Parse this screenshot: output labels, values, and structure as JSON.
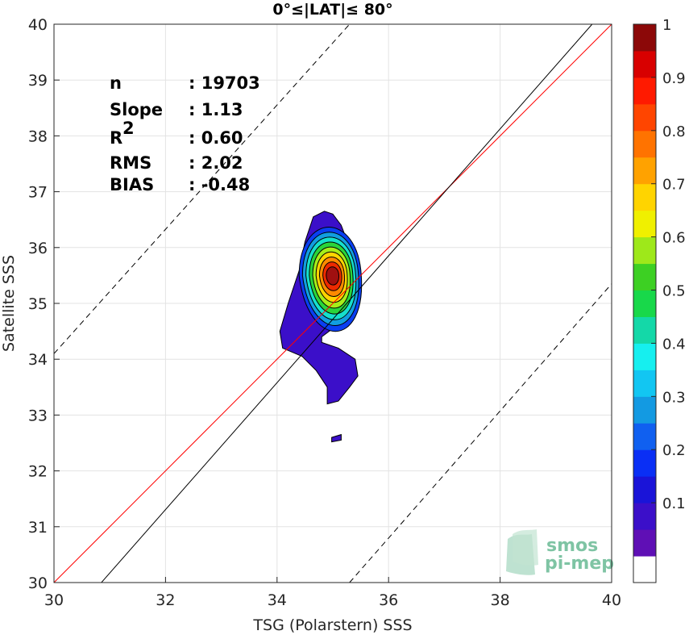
{
  "chart_data": {
    "type": "contour",
    "title": "0°≤|LAT|≤ 80°",
    "xlabel": "TSG (Polarstern) SSS",
    "ylabel": "Satellite SSS",
    "xlim": [
      30,
      40
    ],
    "ylim": [
      30,
      40
    ],
    "xticks": [
      "30",
      "32",
      "34",
      "36",
      "38",
      "40"
    ],
    "yticks": [
      "30",
      "31",
      "32",
      "33",
      "34",
      "35",
      "36",
      "37",
      "38",
      "39",
      "40"
    ],
    "grid": true,
    "stats": [
      {
        "label": "n",
        "value": ": 19703"
      },
      {
        "label": "Slope",
        "value": ": 1.13"
      },
      {
        "label": "R",
        "sup": "2",
        "value": ": 0.60"
      },
      {
        "label": "RMS",
        "value": ": 2.02"
      },
      {
        "label": "BIAS",
        "value": ": -0.48"
      }
    ],
    "lines": [
      {
        "name": "one-to-one",
        "color": "#ff0000",
        "style": "solid",
        "points": [
          [
            30,
            30
          ],
          [
            40,
            40
          ]
        ]
      },
      {
        "name": "regression",
        "color": "#000000",
        "style": "solid",
        "points": [
          [
            30.85,
            30
          ],
          [
            39.65,
            40
          ]
        ]
      },
      {
        "name": "upper-bound",
        "color": "#000000",
        "style": "dashed",
        "points": [
          [
            30,
            34.1
          ],
          [
            35.3,
            40
          ]
        ]
      },
      {
        "name": "lower-bound",
        "color": "#000000",
        "style": "dashed",
        "points": [
          [
            35.3,
            30
          ],
          [
            40,
            35.35
          ]
        ]
      }
    ],
    "density": {
      "center": [
        35.0,
        35.5
      ],
      "peak": 1.0,
      "outer_region": [
        [
          34.85,
          36.65
        ],
        [
          35.0,
          36.6
        ],
        [
          35.15,
          36.4
        ],
        [
          35.3,
          36.0
        ],
        [
          35.35,
          35.5
        ],
        [
          35.3,
          35.1
        ],
        [
          35.2,
          34.75
        ],
        [
          35.0,
          34.55
        ],
        [
          34.8,
          34.4
        ],
        [
          34.8,
          34.3
        ],
        [
          35.1,
          34.2
        ],
        [
          35.4,
          34.0
        ],
        [
          35.45,
          33.7
        ],
        [
          35.3,
          33.5
        ],
        [
          35.1,
          33.25
        ],
        [
          34.9,
          33.2
        ],
        [
          34.9,
          33.5
        ],
        [
          34.7,
          33.8
        ],
        [
          34.45,
          34.05
        ],
        [
          34.1,
          34.2
        ],
        [
          34.05,
          34.5
        ],
        [
          34.2,
          35.0
        ],
        [
          34.4,
          35.6
        ],
        [
          34.5,
          36.1
        ],
        [
          34.65,
          36.55
        ]
      ],
      "island": [
        [
          34.98,
          32.6
        ],
        [
          35.15,
          32.65
        ],
        [
          35.15,
          32.55
        ],
        [
          34.98,
          32.52
        ]
      ],
      "levels": [
        {
          "level": 0.1,
          "color": "#3b0fc9"
        },
        {
          "level": 0.2,
          "color": "#0a3ff2"
        },
        {
          "level": 0.3,
          "color": "#119ee0"
        },
        {
          "level": 0.4,
          "color": "#16e0cc"
        },
        {
          "level": 0.5,
          "color": "#2ad43a"
        },
        {
          "level": 0.6,
          "color": "#a6ee1a"
        },
        {
          "level": 0.7,
          "color": "#ffd400"
        },
        {
          "level": 0.8,
          "color": "#ff8a00"
        },
        {
          "level": 0.9,
          "color": "#ee2a00"
        },
        {
          "level": 1.0,
          "color": "#a01010"
        }
      ]
    },
    "colorbar": {
      "ticks": [
        "0.1",
        "0.2",
        "0.3",
        "0.4",
        "0.5",
        "0.6",
        "0.7",
        "0.8",
        "0.9",
        "1"
      ],
      "colors": [
        "#ffffff",
        "#5f0fb5",
        "#3b0fc9",
        "#1a14d8",
        "#0a2ff5",
        "#1060f0",
        "#139ae2",
        "#12c6f2",
        "#16efef",
        "#14d8a8",
        "#18d84a",
        "#3dd023",
        "#9ee81a",
        "#f0f000",
        "#ffd400",
        "#ffa200",
        "#ff7300",
        "#ff4500",
        "#ff1a00",
        "#d80000",
        "#8c0808"
      ]
    },
    "logo": {
      "line1": "smos",
      "line2": "pi-mep"
    }
  }
}
